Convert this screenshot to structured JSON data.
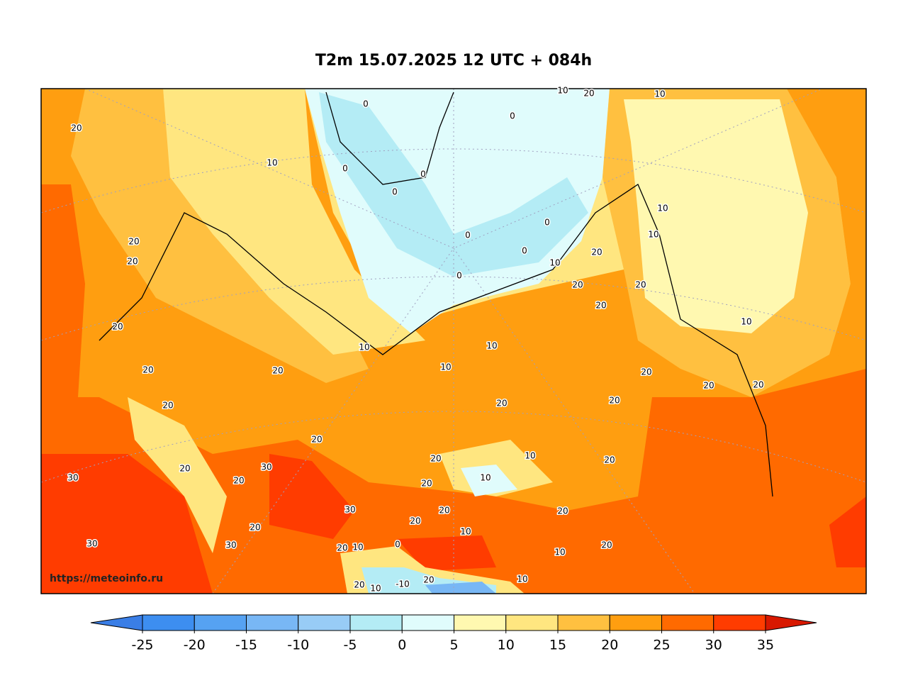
{
  "map": {
    "title": "T2m 15.07.2025 12 UTC + 084h",
    "watermark": "https://meteoinfo.ru",
    "contour_labels": [
      20,
      10,
      0,
      0,
      0,
      0,
      0,
      10,
      20,
      10,
      0,
      0,
      0,
      0,
      10,
      10,
      10,
      20,
      20,
      20,
      20,
      20,
      20,
      20,
      20,
      20,
      20,
      10,
      10,
      10,
      10,
      20,
      20,
      20,
      20,
      20,
      20,
      20,
      10,
      20,
      20,
      30,
      20,
      30,
      10,
      20,
      30,
      20,
      20,
      20,
      10,
      20,
      30,
      30,
      20,
      10,
      0,
      10,
      20,
      20,
      10,
      -10,
      20,
      10
    ],
    "colorbar": {
      "ticks": [
        -25,
        -20,
        -15,
        -10,
        -5,
        0,
        5,
        10,
        15,
        20,
        25,
        30,
        35
      ],
      "colors": [
        "#3a7ee6",
        "#3d8ef0",
        "#56a2f2",
        "#78b7f5",
        "#98ccf6",
        "#b4ecf5",
        "#e0fcfc",
        "#fff8b0",
        "#ffe680",
        "#ffc040",
        "#ff9e10",
        "#ff6a00",
        "#ff3c00",
        "#d81800"
      ]
    }
  }
}
